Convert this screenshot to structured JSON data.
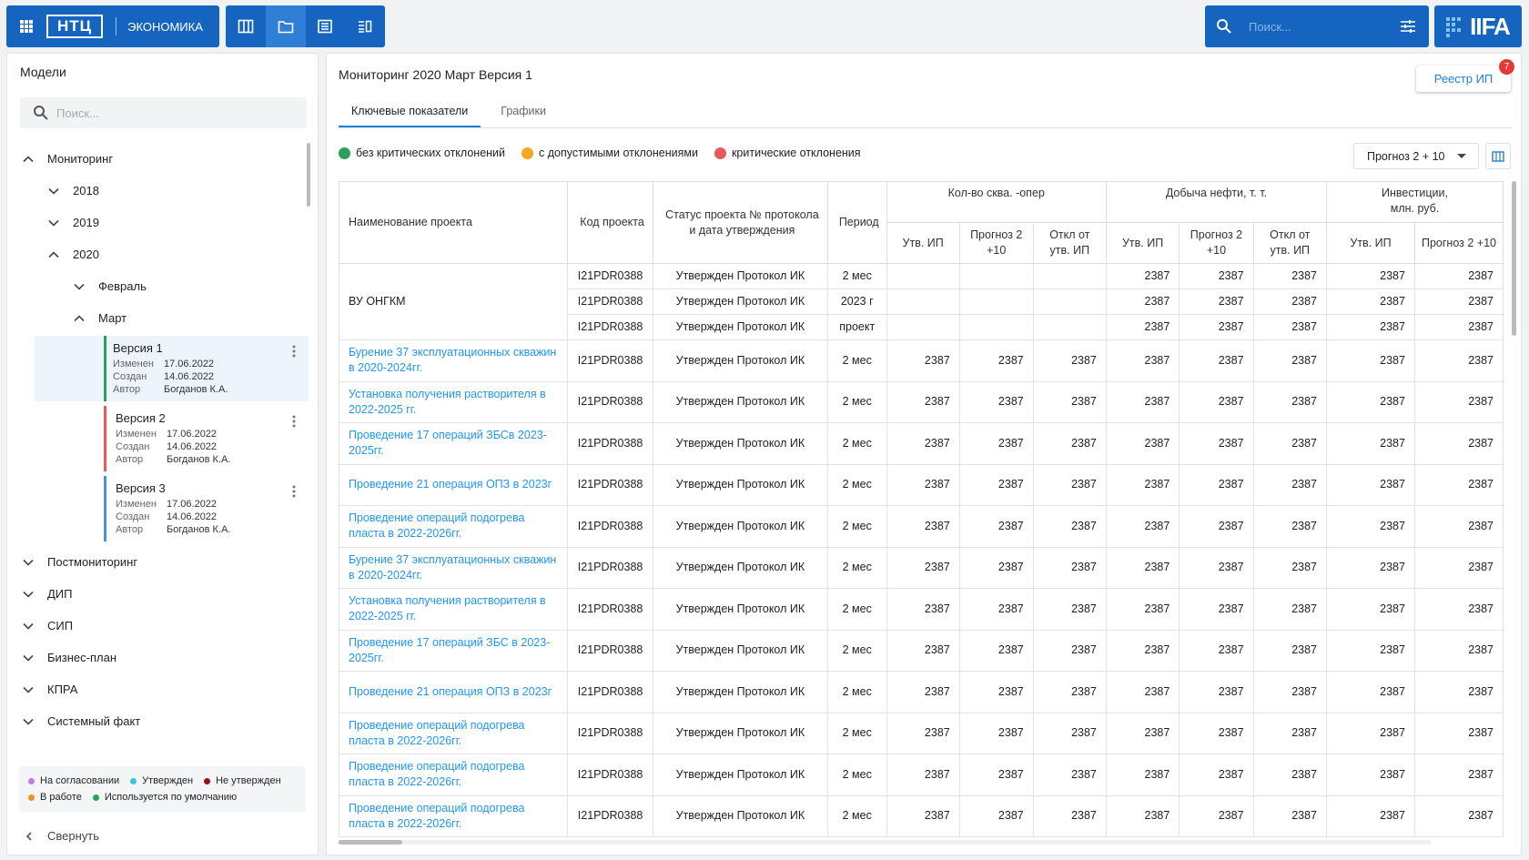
{
  "header": {
    "brand": "НТЦ",
    "module": "ЭКОНОМИКА",
    "search_placeholder": "Поиск...",
    "logo": "IIFA"
  },
  "sidebar": {
    "title": "Модели",
    "search_placeholder": "Поиск...",
    "tree": [
      {
        "label": "Мониторинг",
        "level": 0,
        "expanded": true
      },
      {
        "label": "2018",
        "level": 1,
        "expanded": false
      },
      {
        "label": "2019",
        "level": 1,
        "expanded": false
      },
      {
        "label": "2020",
        "level": 1,
        "expanded": true
      },
      {
        "label": "Февраль",
        "level": 2,
        "expanded": false
      },
      {
        "label": "Март",
        "level": 2,
        "expanded": true
      }
    ],
    "versions": [
      {
        "name": "Версия 1",
        "changed_label": "Изменен",
        "changed": "17.06.2022",
        "created_label": "Создан",
        "created": "14.06.2022",
        "author_label": "Автор",
        "author": "Богданов К.А.",
        "color": "#2e9e5b",
        "selected": true
      },
      {
        "name": "Версия 2",
        "changed_label": "Изменен",
        "changed": "17.06.2022",
        "created_label": "Создан",
        "created": "14.06.2022",
        "author_label": "Автор",
        "author": "Богданов К.А.",
        "color": "#e85a5a",
        "selected": false
      },
      {
        "name": "Версия 3",
        "changed_label": "Изменен",
        "changed": "17.06.2022",
        "created_label": "Создан",
        "created": "14.06.2022",
        "author_label": "Автор",
        "author": "Богданов К.А.",
        "color": "#4a90e2",
        "selected": false
      }
    ],
    "tree_after": [
      {
        "label": "Постмониторинг",
        "level": 0,
        "expanded": false
      },
      {
        "label": "ДИП",
        "level": 0,
        "expanded": false
      },
      {
        "label": "СИП",
        "level": 0,
        "expanded": false
      },
      {
        "label": "Бизнес-план",
        "level": 0,
        "expanded": false
      },
      {
        "label": "КПРА",
        "level": 0,
        "expanded": false
      },
      {
        "label": "Системный факт",
        "level": 0,
        "expanded": false
      }
    ],
    "legend": [
      {
        "label": "На согласовании",
        "color": "#c77be0"
      },
      {
        "label": "Утвержден",
        "color": "#35c9e0"
      },
      {
        "label": "Не утвержден",
        "color": "#9b1010"
      },
      {
        "label": "В работе",
        "color": "#f0902a"
      },
      {
        "label": "Используется по умолчанию",
        "color": "#2e9e5b"
      }
    ],
    "collapse": "Свернуть"
  },
  "main": {
    "title": "Мониторинг 2020 Март Версия 1",
    "registry_button": "Реестр ИП",
    "badge": 7,
    "tabs": [
      {
        "label": "Ключевые показатели",
        "active": true
      },
      {
        "label": "Графики",
        "active": false
      }
    ],
    "status_legend": [
      {
        "label": "без критических отклонений",
        "color": "#2e9e5b"
      },
      {
        "label": "с допустимыми отклонениями",
        "color": "#f5a623"
      },
      {
        "label": "критические отклонения",
        "color": "#e85a5a"
      }
    ],
    "forecast_select": "Прогноз 2 + 10",
    "table": {
      "columns": [
        "Наименование проекта",
        "Код проекта",
        "Статус проекта № протокола и дата утверждения",
        "Период"
      ],
      "groups": [
        {
          "label": "Кол-во сква. -опер",
          "columns": [
            "Утв. ИП",
            "Прогноз 2 +10",
            "Откл от утв. ИП"
          ]
        },
        {
          "label": "Добыча нефти, т. т.",
          "columns": [
            "Утв. ИП",
            "Прогноз 2 +10",
            "Откл от утв. ИП"
          ]
        },
        {
          "label": "Инвестиции, млн. руб.",
          "columns": [
            "Утв. ИП",
            "Прогноз 2 +10"
          ]
        }
      ],
      "rows": [
        {
          "name": "ВУ ОНГКМ",
          "link": false,
          "code": "I21PDR0388",
          "status": "Утвержден Протокол ИК",
          "period": "2 мес",
          "values": [
            null,
            null,
            null,
            2387,
            2387,
            2387,
            2387,
            2387
          ]
        },
        {
          "code": "I21PDR0388",
          "status": "Утвержден Протокол ИК",
          "period": "2023 г",
          "values": [
            null,
            null,
            null,
            2387,
            2387,
            2387,
            2387,
            2387
          ]
        },
        {
          "code": "I21PDR0388",
          "status": "Утвержден Протокол ИК",
          "period": "проект",
          "values": [
            null,
            null,
            null,
            2387,
            2387,
            2387,
            2387,
            2387
          ]
        },
        {
          "name": "Бурение 37 эксплуатационных скважин в 2020-2024гг.",
          "link": true,
          "code": "I21PDR0388",
          "status": "Утвержден Протокол ИК",
          "period": "2 мес",
          "values": [
            2387,
            2387,
            2387,
            2387,
            2387,
            2387,
            2387,
            2387
          ]
        },
        {
          "name": "Установка получения растворителя в 2022-2025 гг.",
          "link": true,
          "code": "I21PDR0388",
          "status": "Утвержден Протокол ИК",
          "period": "2 мес",
          "values": [
            2387,
            2387,
            2387,
            2387,
            2387,
            2387,
            2387,
            2387
          ]
        },
        {
          "name": "Проведение 17 операций ЗБСв 2023-2025гг.",
          "link": true,
          "code": "I21PDR0388",
          "status": "Утвержден Протокол ИК",
          "period": "2 мес",
          "values": [
            2387,
            2387,
            2387,
            2387,
            2387,
            2387,
            2387,
            2387
          ]
        },
        {
          "name": "Проведение 21 операция ОПЗ в 2023г",
          "link": true,
          "code": "I21PDR0388",
          "status": "Утвержден Протокол ИК",
          "period": "2 мес",
          "values": [
            2387,
            2387,
            2387,
            2387,
            2387,
            2387,
            2387,
            2387
          ]
        },
        {
          "name": "Проведение операций подогрева пласта в 2022-2026гг.",
          "link": true,
          "code": "I21PDR0388",
          "status": "Утвержден Протокол ИК",
          "period": "2 мес",
          "values": [
            2387,
            2387,
            2387,
            2387,
            2387,
            2387,
            2387,
            2387
          ]
        },
        {
          "name": "Бурение 37 эксплуатационных скважин в 2020-2024гг.",
          "link": true,
          "code": "I21PDR0388",
          "status": "Утвержден Протокол ИК",
          "period": "2 мес",
          "values": [
            2387,
            2387,
            2387,
            2387,
            2387,
            2387,
            2387,
            2387
          ]
        },
        {
          "name": "Установка получения растворителя в 2022-2025 гг.",
          "link": true,
          "code": "I21PDR0388",
          "status": "Утвержден Протокол ИК",
          "period": "2 мес",
          "values": [
            2387,
            2387,
            2387,
            2387,
            2387,
            2387,
            2387,
            2387
          ]
        },
        {
          "name": "Проведение 17 операций ЗБС в 2023-2025гг.",
          "link": true,
          "code": "I21PDR0388",
          "status": "Утвержден Протокол ИК",
          "period": "2 мес",
          "values": [
            2387,
            2387,
            2387,
            2387,
            2387,
            2387,
            2387,
            2387
          ]
        },
        {
          "name": "Проведение 21 операция ОПЗ в 2023г",
          "link": true,
          "code": "I21PDR0388",
          "status": "Утвержден Протокол ИК",
          "period": "2 мес",
          "values": [
            2387,
            2387,
            2387,
            2387,
            2387,
            2387,
            2387,
            2387
          ]
        },
        {
          "name": "Проведение операций подогрева пласта в 2022-2026гг.",
          "link": true,
          "code": "I21PDR0388",
          "status": "Утвержден Протокол ИК",
          "period": "2 мес",
          "values": [
            2387,
            2387,
            2387,
            2387,
            2387,
            2387,
            2387,
            2387
          ]
        },
        {
          "name": "Проведение операций подогрева пласта в 2022-2026гг.",
          "link": true,
          "code": "I21PDR0388",
          "status": "Утвержден Протокол ИК",
          "period": "2 мес",
          "values": [
            2387,
            2387,
            2387,
            2387,
            2387,
            2387,
            2387,
            2387
          ]
        },
        {
          "name": "Проведение операций подогрева пласта в 2022-2026гг.",
          "link": true,
          "code": "I21PDR0388",
          "status": "Утвержден Протокол ИК",
          "period": "2 мес",
          "values": [
            2387,
            2387,
            2387,
            2387,
            2387,
            2387,
            2387,
            2387
          ]
        }
      ]
    }
  }
}
